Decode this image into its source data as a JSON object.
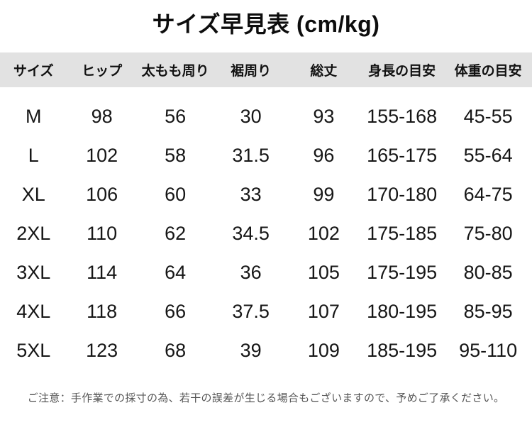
{
  "title": "サイズ早見表 (cm/kg)",
  "table": {
    "columns": [
      "サイズ",
      "ヒップ",
      "太もも周り",
      "裾周り",
      "総丈",
      "身長の目安",
      "体重の目安"
    ],
    "rows": [
      [
        "M",
        "98",
        "56",
        "30",
        "93",
        "155-168",
        "45-55"
      ],
      [
        "L",
        "102",
        "58",
        "31.5",
        "96",
        "165-175",
        "55-64"
      ],
      [
        "XL",
        "106",
        "60",
        "33",
        "99",
        "170-180",
        "64-75"
      ],
      [
        "2XL",
        "110",
        "62",
        "34.5",
        "102",
        "175-185",
        "75-80"
      ],
      [
        "3XL",
        "114",
        "64",
        "36",
        "105",
        "175-195",
        "80-85"
      ],
      [
        "4XL",
        "118",
        "66",
        "37.5",
        "107",
        "180-195",
        "85-95"
      ],
      [
        "5XL",
        "123",
        "68",
        "39",
        "109",
        "185-195",
        "95-110"
      ]
    ]
  },
  "note": "ご注意：手作業での採寸の為、若干の誤差が生じる場合もございますので、予めご了承ください。",
  "colors": {
    "header_bg": "#e2e2e2",
    "title_text": "#0d0d0d",
    "body_text": "#161616",
    "note_text": "#555555"
  }
}
